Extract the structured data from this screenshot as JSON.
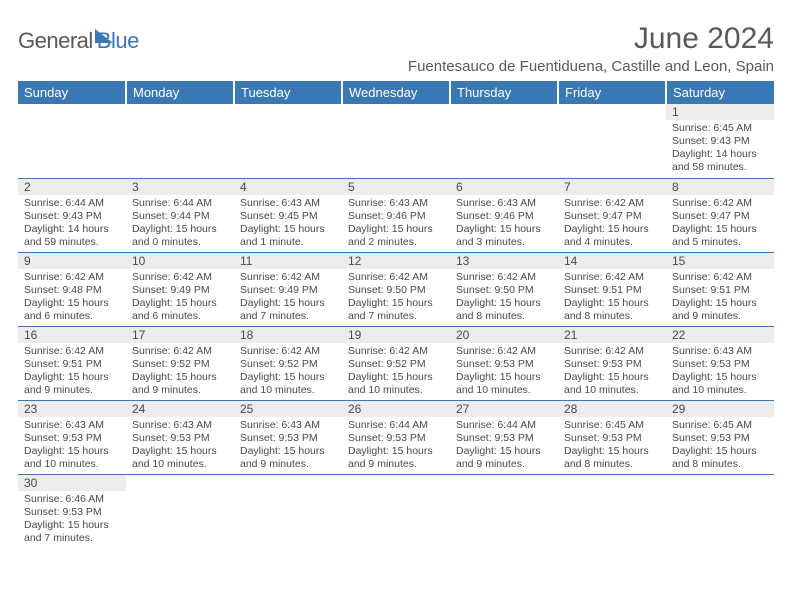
{
  "brand": {
    "part1": "General",
    "part2": "Blue"
  },
  "title": "June 2024",
  "location": "Fuentesauco de Fuentiduena, Castille and Leon, Spain",
  "colors": {
    "accent": "#3a78b5",
    "header_text": "#ffffff",
    "daynum_bg": "#ececec",
    "text": "#4a4a4a",
    "title_text": "#595959"
  },
  "day_headers": [
    "Sunday",
    "Monday",
    "Tuesday",
    "Wednesday",
    "Thursday",
    "Friday",
    "Saturday"
  ],
  "weeks": [
    [
      null,
      null,
      null,
      null,
      null,
      null,
      {
        "n": "1",
        "sr": "6:45 AM",
        "ss": "9:43 PM",
        "dl": "14 hours and 58 minutes."
      }
    ],
    [
      {
        "n": "2",
        "sr": "6:44 AM",
        "ss": "9:43 PM",
        "dl": "14 hours and 59 minutes."
      },
      {
        "n": "3",
        "sr": "6:44 AM",
        "ss": "9:44 PM",
        "dl": "15 hours and 0 minutes."
      },
      {
        "n": "4",
        "sr": "6:43 AM",
        "ss": "9:45 PM",
        "dl": "15 hours and 1 minute."
      },
      {
        "n": "5",
        "sr": "6:43 AM",
        "ss": "9:46 PM",
        "dl": "15 hours and 2 minutes."
      },
      {
        "n": "6",
        "sr": "6:43 AM",
        "ss": "9:46 PM",
        "dl": "15 hours and 3 minutes."
      },
      {
        "n": "7",
        "sr": "6:42 AM",
        "ss": "9:47 PM",
        "dl": "15 hours and 4 minutes."
      },
      {
        "n": "8",
        "sr": "6:42 AM",
        "ss": "9:47 PM",
        "dl": "15 hours and 5 minutes."
      }
    ],
    [
      {
        "n": "9",
        "sr": "6:42 AM",
        "ss": "9:48 PM",
        "dl": "15 hours and 6 minutes."
      },
      {
        "n": "10",
        "sr": "6:42 AM",
        "ss": "9:49 PM",
        "dl": "15 hours and 6 minutes."
      },
      {
        "n": "11",
        "sr": "6:42 AM",
        "ss": "9:49 PM",
        "dl": "15 hours and 7 minutes."
      },
      {
        "n": "12",
        "sr": "6:42 AM",
        "ss": "9:50 PM",
        "dl": "15 hours and 7 minutes."
      },
      {
        "n": "13",
        "sr": "6:42 AM",
        "ss": "9:50 PM",
        "dl": "15 hours and 8 minutes."
      },
      {
        "n": "14",
        "sr": "6:42 AM",
        "ss": "9:51 PM",
        "dl": "15 hours and 8 minutes."
      },
      {
        "n": "15",
        "sr": "6:42 AM",
        "ss": "9:51 PM",
        "dl": "15 hours and 9 minutes."
      }
    ],
    [
      {
        "n": "16",
        "sr": "6:42 AM",
        "ss": "9:51 PM",
        "dl": "15 hours and 9 minutes."
      },
      {
        "n": "17",
        "sr": "6:42 AM",
        "ss": "9:52 PM",
        "dl": "15 hours and 9 minutes."
      },
      {
        "n": "18",
        "sr": "6:42 AM",
        "ss": "9:52 PM",
        "dl": "15 hours and 10 minutes."
      },
      {
        "n": "19",
        "sr": "6:42 AM",
        "ss": "9:52 PM",
        "dl": "15 hours and 10 minutes."
      },
      {
        "n": "20",
        "sr": "6:42 AM",
        "ss": "9:53 PM",
        "dl": "15 hours and 10 minutes."
      },
      {
        "n": "21",
        "sr": "6:42 AM",
        "ss": "9:53 PM",
        "dl": "15 hours and 10 minutes."
      },
      {
        "n": "22",
        "sr": "6:43 AM",
        "ss": "9:53 PM",
        "dl": "15 hours and 10 minutes."
      }
    ],
    [
      {
        "n": "23",
        "sr": "6:43 AM",
        "ss": "9:53 PM",
        "dl": "15 hours and 10 minutes."
      },
      {
        "n": "24",
        "sr": "6:43 AM",
        "ss": "9:53 PM",
        "dl": "15 hours and 10 minutes."
      },
      {
        "n": "25",
        "sr": "6:43 AM",
        "ss": "9:53 PM",
        "dl": "15 hours and 9 minutes."
      },
      {
        "n": "26",
        "sr": "6:44 AM",
        "ss": "9:53 PM",
        "dl": "15 hours and 9 minutes."
      },
      {
        "n": "27",
        "sr": "6:44 AM",
        "ss": "9:53 PM",
        "dl": "15 hours and 9 minutes."
      },
      {
        "n": "28",
        "sr": "6:45 AM",
        "ss": "9:53 PM",
        "dl": "15 hours and 8 minutes."
      },
      {
        "n": "29",
        "sr": "6:45 AM",
        "ss": "9:53 PM",
        "dl": "15 hours and 8 minutes."
      }
    ],
    [
      {
        "n": "30",
        "sr": "6:46 AM",
        "ss": "9:53 PM",
        "dl": "15 hours and 7 minutes."
      },
      null,
      null,
      null,
      null,
      null,
      null
    ]
  ],
  "labels": {
    "sunrise": "Sunrise:",
    "sunset": "Sunset:",
    "daylight": "Daylight:"
  }
}
